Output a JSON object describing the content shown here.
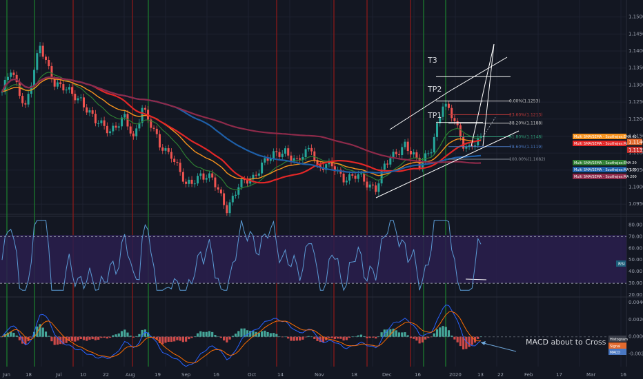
{
  "chart_data": [
    {
      "type": "candlestick",
      "symbol_scale": "price",
      "ylim": [
        1.092,
        1.155
      ],
      "y_ticks": [
        "1.1500",
        "1.1450",
        "1.1400",
        "1.1350",
        "1.1300",
        "1.1250",
        "1.1200",
        "1.1150",
        "1.1100",
        "1.1050",
        "1.1000",
        "1.0950"
      ],
      "vertical_markers": {
        "green": [
          "Jun 5",
          "Jun 28",
          "Aug 22",
          "Dec 27",
          "Jan 3"
        ],
        "red": [
          "Jul 8",
          "Aug 16",
          "Oct 30",
          "Nov 23",
          "Dec 5",
          "Dec 20"
        ]
      },
      "ma_legend": [
        {
          "label": "Multi SMA/SEMA - Southejes:EMA 40",
          "color": "#f7931e"
        },
        {
          "label": "Multi SMA/SEMA - Southejes:MA 50",
          "color": "#e32727"
        },
        {
          "label": "Multi SMA/SEMA - Southejes:EMA 20",
          "color": "#2e7d32"
        },
        {
          "label": "Multi SMA/SEMA - Southejes:MA 100",
          "color": "#1e5fa8"
        },
        {
          "label": "Multi SMA/SEMA - Southejes:MA 200",
          "color": "#8e2a4a"
        }
      ],
      "price_badges": [
        "1.1140",
        "1.1135"
      ],
      "fib_levels": [
        {
          "label": "0.00%(1.1253)",
          "value": 1.1253,
          "color": "#c9c9c9"
        },
        {
          "label": "23.60%(1.1213)",
          "value": 1.1213,
          "color": "#c03a3a"
        },
        {
          "label": "38.20%(1.1188)",
          "value": 1.1188,
          "color": "#c9c9c9"
        },
        {
          "label": "61.80%(1.1148)",
          "value": 1.1148,
          "color": "#2e9e78"
        },
        {
          "label": "78.60%(1.1119)",
          "value": 1.1119,
          "color": "#4a78c2"
        },
        {
          "label": "100.00%(1.1082)",
          "value": 1.1082,
          "color": "#8a8f99"
        }
      ],
      "annotations": [
        {
          "text": "T3",
          "level": 1.1325
        },
        {
          "text": "TP2",
          "level": 1.1253
        },
        {
          "text": "TP1",
          "level": 1.119
        }
      ]
    },
    {
      "type": "line",
      "name": "RSI",
      "ylim": [
        20,
        85
      ],
      "y_ticks": [
        "80.00",
        "70.00",
        "60.00",
        "50.00",
        "40.00",
        "30.00",
        "20.00"
      ],
      "band": [
        30,
        70
      ],
      "badge": "RSI"
    },
    {
      "type": "bar",
      "name": "MACD",
      "ylim": [
        -0.0035,
        0.0045
      ],
      "y_ticks": [
        "0.0040",
        "0.0020",
        "0.0000",
        "-0.0020"
      ],
      "badges": [
        "Histogram",
        "Signal",
        "MACD"
      ],
      "annotation": "MACD about to Cross"
    }
  ],
  "x_axis": {
    "dates": [
      "Jun",
      "18",
      "Jul",
      "10",
      "22",
      "Aug",
      "19",
      "Sep",
      "16",
      "Oct",
      "14",
      "Nov",
      "18",
      "Dec",
      "16",
      "2020",
      "13",
      "22",
      "Feb",
      "17",
      "Mar",
      "16"
    ]
  },
  "colors": {
    "background": "#131722",
    "bull": "#26a69a",
    "bear": "#ef5350",
    "rsi": "#5b9bd5",
    "macd": "#2962ff",
    "signal": "#ff6d00"
  }
}
